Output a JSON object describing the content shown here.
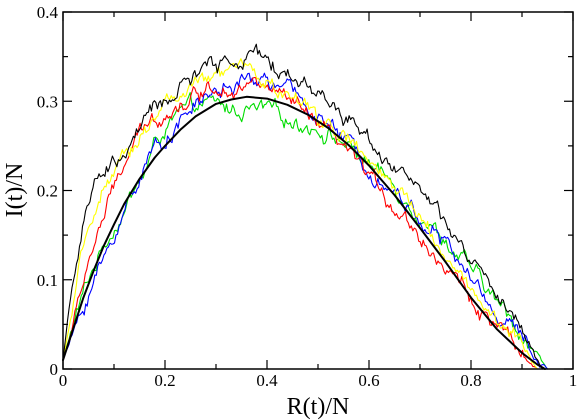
{
  "chart_data": {
    "type": "line",
    "xlabel": "R(t)/N",
    "ylabel": "I(t)/N",
    "xlim": [
      0,
      1
    ],
    "ylim": [
      0,
      0.4
    ],
    "x_ticks": [
      0,
      0.2,
      0.4,
      0.6,
      0.8,
      1
    ],
    "y_ticks": [
      0,
      0.1,
      0.2,
      0.3,
      0.4
    ],
    "x_tick_labels": [
      "0",
      "0.2",
      "0.4",
      "0.6",
      "0.8",
      "1"
    ],
    "y_tick_labels": [
      "0",
      "0.1",
      "0.2",
      "0.3",
      "0.4"
    ],
    "grid": false,
    "legend": "none",
    "series": [
      {
        "color": "#00dd00",
        "noisy": true,
        "x": [
          0.0,
          0.02,
          0.05,
          0.08,
          0.1,
          0.12,
          0.14,
          0.16,
          0.18,
          0.2,
          0.22,
          0.25,
          0.28,
          0.3,
          0.33,
          0.36,
          0.4,
          0.44,
          0.48,
          0.52,
          0.56,
          0.6,
          0.65,
          0.7,
          0.75,
          0.8,
          0.85,
          0.9,
          0.93,
          0.95
        ],
        "y": [
          0.01,
          0.05,
          0.1,
          0.14,
          0.16,
          0.18,
          0.2,
          0.22,
          0.25,
          0.27,
          0.28,
          0.29,
          0.295,
          0.295,
          0.29,
          0.29,
          0.288,
          0.28,
          0.275,
          0.265,
          0.25,
          0.23,
          0.205,
          0.175,
          0.145,
          0.11,
          0.075,
          0.04,
          0.015,
          0.0
        ]
      },
      {
        "color": "#0000ff",
        "noisy": true,
        "x": [
          0.0,
          0.02,
          0.04,
          0.06,
          0.08,
          0.1,
          0.13,
          0.16,
          0.2,
          0.24,
          0.28,
          0.32,
          0.36,
          0.4,
          0.44,
          0.48,
          0.52,
          0.56,
          0.6,
          0.65,
          0.7,
          0.75,
          0.8,
          0.85,
          0.9,
          0.93,
          0.95
        ],
        "y": [
          0.01,
          0.04,
          0.07,
          0.1,
          0.12,
          0.15,
          0.19,
          0.23,
          0.26,
          0.285,
          0.305,
          0.315,
          0.32,
          0.325,
          0.31,
          0.295,
          0.275,
          0.25,
          0.23,
          0.2,
          0.17,
          0.14,
          0.1,
          0.065,
          0.035,
          0.01,
          0.0
        ]
      },
      {
        "color": "#ff0000",
        "noisy": true,
        "x": [
          0.0,
          0.02,
          0.04,
          0.06,
          0.08,
          0.1,
          0.12,
          0.15,
          0.18,
          0.2,
          0.24,
          0.28,
          0.32,
          0.36,
          0.4,
          0.44,
          0.48,
          0.52,
          0.56,
          0.6,
          0.65,
          0.7,
          0.75,
          0.8,
          0.85,
          0.9,
          0.93
        ],
        "y": [
          0.01,
          0.05,
          0.1,
          0.14,
          0.17,
          0.2,
          0.23,
          0.26,
          0.28,
          0.29,
          0.3,
          0.315,
          0.32,
          0.32,
          0.315,
          0.3,
          0.28,
          0.26,
          0.24,
          0.215,
          0.185,
          0.15,
          0.115,
          0.08,
          0.045,
          0.015,
          0.0
        ]
      },
      {
        "color": "#ffff00",
        "noisy": true,
        "x": [
          0.0,
          0.02,
          0.04,
          0.06,
          0.08,
          0.1,
          0.13,
          0.16,
          0.2,
          0.24,
          0.28,
          0.32,
          0.36,
          0.4,
          0.44,
          0.48,
          0.52,
          0.56,
          0.6,
          0.65,
          0.7,
          0.75,
          0.8,
          0.85,
          0.9,
          0.93
        ],
        "y": [
          0.01,
          0.07,
          0.13,
          0.18,
          0.2,
          0.21,
          0.24,
          0.27,
          0.3,
          0.31,
          0.32,
          0.33,
          0.34,
          0.32,
          0.305,
          0.29,
          0.275,
          0.255,
          0.23,
          0.2,
          0.17,
          0.13,
          0.09,
          0.055,
          0.025,
          0.0
        ]
      },
      {
        "color": "#000000",
        "noisy": true,
        "x": [
          0.0,
          0.01,
          0.02,
          0.04,
          0.06,
          0.08,
          0.1,
          0.12,
          0.15,
          0.18,
          0.22,
          0.26,
          0.3,
          0.33,
          0.36,
          0.38,
          0.4,
          0.44,
          0.48,
          0.52,
          0.56,
          0.6,
          0.65,
          0.7,
          0.75,
          0.8,
          0.85,
          0.9,
          0.94
        ],
        "y": [
          0.01,
          0.06,
          0.1,
          0.16,
          0.2,
          0.22,
          0.23,
          0.24,
          0.27,
          0.29,
          0.31,
          0.33,
          0.34,
          0.345,
          0.35,
          0.35,
          0.34,
          0.33,
          0.32,
          0.3,
          0.28,
          0.26,
          0.23,
          0.2,
          0.16,
          0.12,
          0.08,
          0.04,
          0.0
        ]
      },
      {
        "color": "#000000",
        "noisy": false,
        "x": [
          0.0,
          0.02,
          0.04,
          0.06,
          0.08,
          0.1,
          0.12,
          0.15,
          0.18,
          0.2,
          0.23,
          0.26,
          0.3,
          0.33,
          0.36,
          0.4,
          0.44,
          0.48,
          0.52,
          0.56,
          0.6,
          0.65,
          0.7,
          0.75,
          0.8,
          0.85,
          0.9,
          0.93,
          0.945
        ],
        "y": [
          0.01,
          0.045,
          0.08,
          0.11,
          0.138,
          0.162,
          0.185,
          0.213,
          0.237,
          0.25,
          0.268,
          0.283,
          0.297,
          0.302,
          0.305,
          0.303,
          0.296,
          0.285,
          0.27,
          0.251,
          0.228,
          0.195,
          0.158,
          0.12,
          0.08,
          0.045,
          0.018,
          0.005,
          0.0
        ]
      }
    ]
  }
}
